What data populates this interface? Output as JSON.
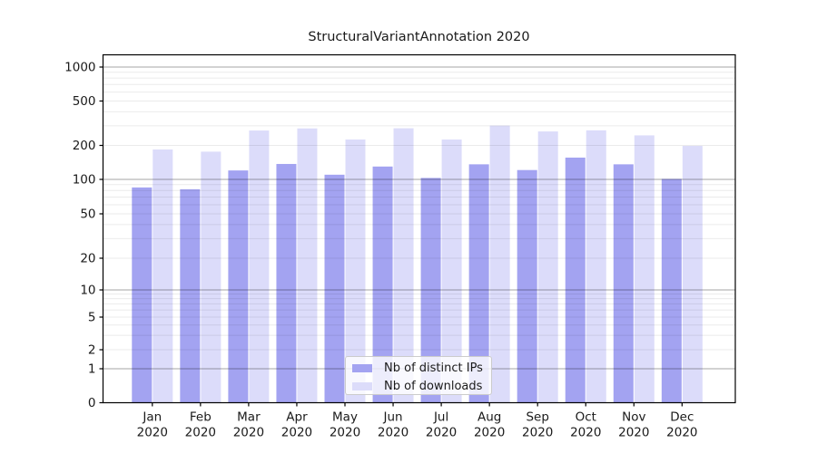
{
  "title": "StructuralVariantAnnotation 2020",
  "colors": {
    "ips_bar": "#a3a3f1",
    "downloads_bar": "#dcdcfa",
    "grid_minor": "rgba(0,0,0,0.08)",
    "grid_major_decade": "rgba(0,0,0,0.35)",
    "axis": "#000000",
    "text": "#1a1a1a"
  },
  "legend": {
    "items": [
      {
        "key": "ips",
        "label": "Nb of distinct IPs",
        "color": "#a3a3f1"
      },
      {
        "key": "downloads",
        "label": "Nb of downloads",
        "color": "#dcdcfa"
      }
    ]
  },
  "chart_data": {
    "type": "bar",
    "title": "StructuralVariantAnnotation 2020",
    "categories": [
      "Jan",
      "Feb",
      "Mar",
      "Apr",
      "May",
      "Jun",
      "Jul",
      "Aug",
      "Sep",
      "Oct",
      "Nov",
      "Dec"
    ],
    "category_year": "2020",
    "series": [
      {
        "key": "ips",
        "name": "Nb of distinct IPs",
        "color": "#a3a3f1",
        "values": [
          85,
          82,
          120,
          137,
          110,
          130,
          103,
          136,
          121,
          156,
          136,
          101
        ]
      },
      {
        "key": "downloads",
        "name": "Nb of downloads",
        "color": "#dcdcfa",
        "values": [
          184,
          176,
          272,
          284,
          226,
          285,
          226,
          301,
          267,
          273,
          246,
          198
        ]
      }
    ],
    "yscale": "symlog",
    "yticks": [
      0,
      1,
      2,
      5,
      10,
      20,
      50,
      100,
      200,
      500,
      1000
    ],
    "ylim": [
      0,
      1000
    ],
    "xlabel": "",
    "ylabel": "",
    "grid": true,
    "grid_over_bars": true,
    "legend_position": "lower center"
  }
}
